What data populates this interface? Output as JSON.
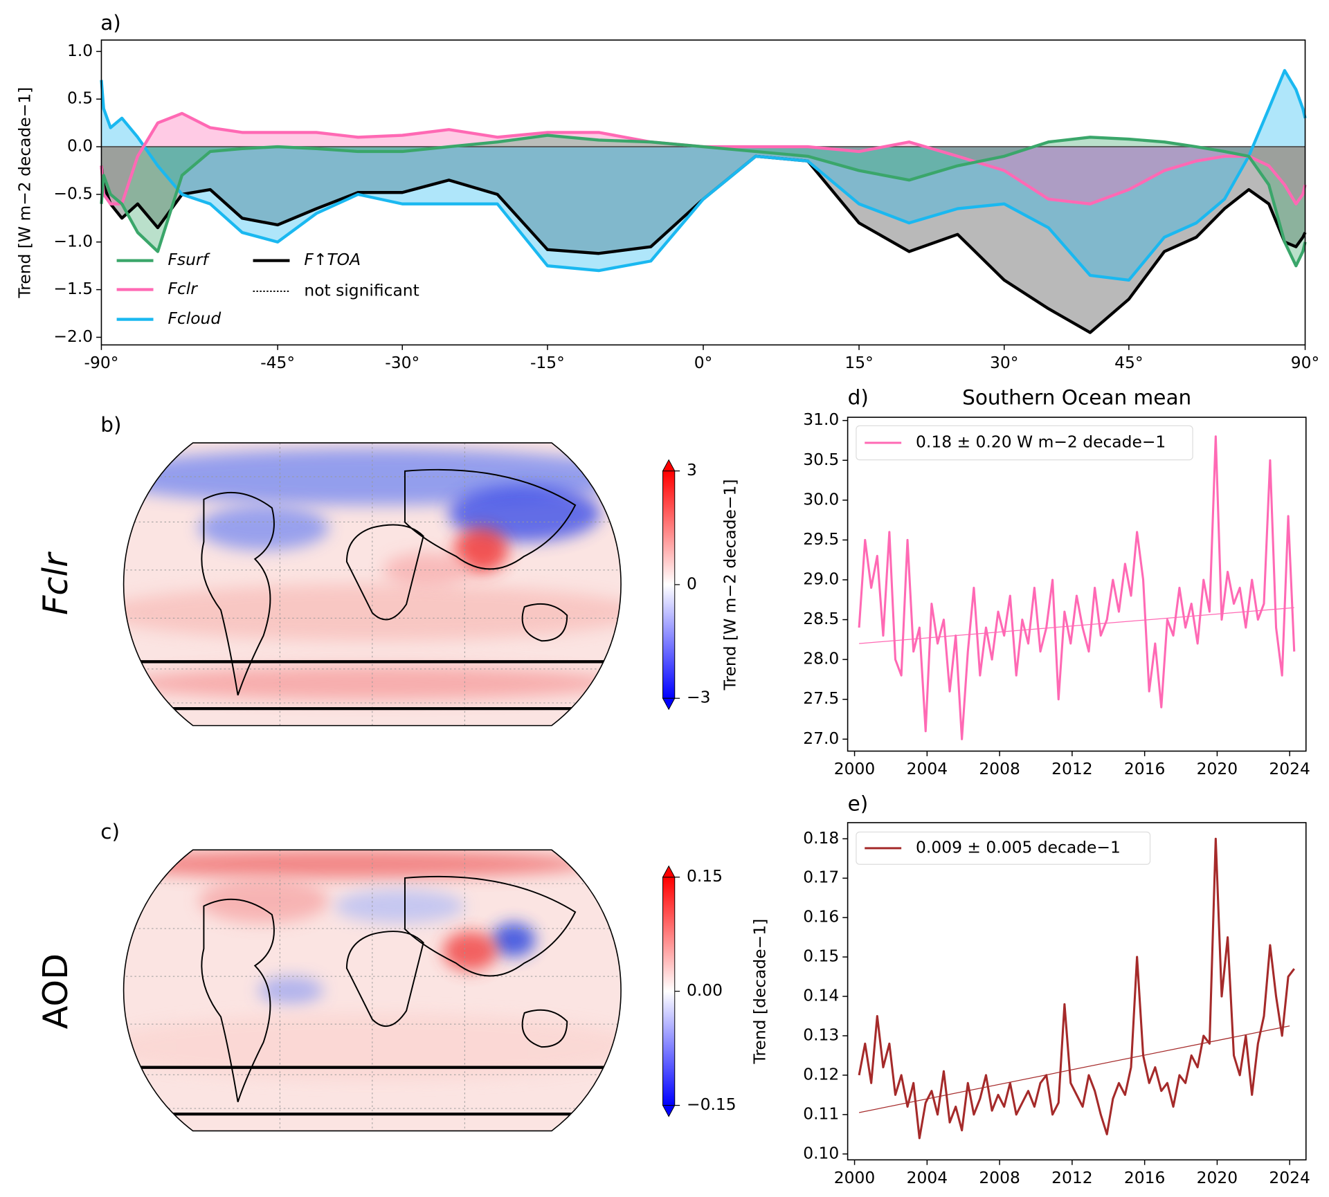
{
  "chart_data": [
    {
      "type": "line",
      "panel": "a)",
      "ylabel": "Trend [W m−2 decade−1]",
      "xscale": "sine",
      "xlim": [
        -90,
        90
      ],
      "xticks": [
        {
          "value": -90,
          "label": "-90°"
        },
        {
          "value": -45,
          "label": "-45°"
        },
        {
          "value": -30,
          "label": "-30°"
        },
        {
          "value": -15,
          "label": "-15°"
        },
        {
          "value": 0,
          "label": "0°"
        },
        {
          "value": 15,
          "label": "15°"
        },
        {
          "value": 30,
          "label": "30°"
        },
        {
          "value": 45,
          "label": "45°"
        },
        {
          "value": 90,
          "label": "90°"
        }
      ],
      "ylim": [
        -2.08,
        1.12
      ],
      "yticks": [
        {
          "value": 1,
          "label": "1.0"
        },
        0.5,
        {
          "value": 0,
          "label": "0.0"
        },
        {
          "value": -0.5,
          "label": "−0.5"
        },
        {
          "value": -1,
          "label": "−1.0"
        },
        {
          "value": -1.5,
          "label": "−1.5"
        },
        {
          "value": -2,
          "label": "−2.0"
        }
      ],
      "x": [
        -90,
        -85,
        -80,
        -75,
        -70,
        -65,
        -60,
        -55,
        -50,
        -45,
        -40,
        -35,
        -30,
        -25,
        -20,
        -15,
        -10,
        -5,
        0,
        5,
        10,
        15,
        20,
        25,
        30,
        35,
        40,
        45,
        50,
        55,
        60,
        65,
        70,
        75,
        80,
        85,
        90
      ],
      "series": [
        {
          "name": "F↑TOA",
          "color": "#000000",
          "fill": "#808080",
          "values": [
            -0.2,
            -0.4,
            -0.6,
            -0.75,
            -0.6,
            -0.85,
            -0.5,
            -0.45,
            -0.75,
            -0.82,
            -0.65,
            -0.48,
            -0.48,
            -0.35,
            -0.5,
            -1.08,
            -1.12,
            -1.05,
            -0.55,
            -0.1,
            -0.15,
            -0.8,
            -1.1,
            -0.92,
            -1.4,
            -1.7,
            -1.95,
            -1.6,
            -1.1,
            -0.95,
            -0.65,
            -0.45,
            -0.6,
            -1.0,
            -1.05,
            -0.95,
            -0.9
          ]
        },
        {
          "name": "Fcloud",
          "color": "#1ab8f0",
          "fill": "#1ab8f0",
          "values": [
            0.7,
            0.4,
            0.2,
            0.3,
            0.1,
            -0.2,
            -0.5,
            -0.6,
            -0.9,
            -1.0,
            -0.7,
            -0.5,
            -0.6,
            -0.6,
            -0.6,
            -1.25,
            -1.3,
            -1.2,
            -0.55,
            -0.1,
            -0.15,
            -0.6,
            -0.8,
            -0.65,
            -0.6,
            -0.85,
            -1.35,
            -1.4,
            -0.95,
            -0.8,
            -0.55,
            -0.1,
            0.4,
            0.8,
            0.6,
            0.4,
            0.3
          ]
        },
        {
          "name": "Fclr",
          "color": "#ff69b4",
          "fill": "#ff69b4",
          "values": [
            -0.2,
            -0.5,
            -0.6,
            -0.6,
            -0.1,
            0.25,
            0.35,
            0.2,
            0.15,
            0.15,
            0.15,
            0.1,
            0.12,
            0.18,
            0.1,
            0.15,
            0.15,
            0.05,
            0,
            0,
            0,
            -0.05,
            0.05,
            -0.1,
            -0.25,
            -0.55,
            -0.6,
            -0.45,
            -0.25,
            -0.15,
            -0.1,
            -0.1,
            -0.2,
            -0.4,
            -0.6,
            -0.5,
            -0.4
          ]
        },
        {
          "name": "Fsurf",
          "color": "#3aa66a",
          "fill": "#3aa66a",
          "values": [
            -0.6,
            -0.3,
            -0.5,
            -0.6,
            -0.9,
            -1.1,
            -0.3,
            -0.05,
            -0.02,
            0,
            -0.02,
            -0.05,
            -0.05,
            0,
            0.05,
            0.12,
            0.07,
            0.05,
            0,
            -0.05,
            -0.1,
            -0.25,
            -0.35,
            -0.2,
            -0.1,
            0.05,
            0.1,
            0.08,
            0.05,
            0,
            -0.05,
            -0.1,
            -0.4,
            -1.0,
            -1.25,
            -1.1,
            -1.0
          ]
        }
      ],
      "legend_note": "not significant"
    },
    {
      "type": "map",
      "panel": "b)",
      "title": "Fclr",
      "clim": [
        -3,
        3
      ],
      "cticks": [
        3,
        0,
        {
          "value": -3,
          "label": "−3"
        }
      ],
      "clabel": "Trend [W m−2 decade−1]"
    },
    {
      "type": "map",
      "panel": "c)",
      "title": "AOD",
      "clim": [
        -0.15,
        0.15
      ],
      "cticks": [
        0.15,
        {
          "value": 0,
          "label": "0.00"
        },
        {
          "value": -0.15,
          "label": "−0.15"
        }
      ]
    },
    {
      "type": "line",
      "panel": "d)",
      "title": "Southern Ocean mean",
      "xlim": [
        1999.62,
        2024.9
      ],
      "xticks": [
        2000,
        2004,
        2008,
        2012,
        2016,
        2020,
        2024
      ],
      "ylim": [
        26.85,
        31.04
      ],
      "yticks": [
        {
          "value": 27,
          "label": "27.0"
        },
        27.5,
        {
          "value": 28,
          "label": "28.0"
        },
        28.5,
        {
          "value": 29,
          "label": "29.0"
        },
        29.5,
        {
          "value": 30,
          "label": "30.0"
        },
        30.5,
        {
          "value": 31,
          "label": "31.0"
        }
      ],
      "series": [
        {
          "name": "0.18 ± 0.20 W m−2 decade−1",
          "color": "#ff69b4",
          "x": [
            2000.25,
            2000.58,
            2000.92,
            2001.25,
            2001.58,
            2001.92,
            2002.25,
            2002.58,
            2002.92,
            2003.25,
            2003.58,
            2003.92,
            2004.25,
            2004.58,
            2004.92,
            2005.25,
            2005.58,
            2005.92,
            2006.25,
            2006.58,
            2006.92,
            2007.25,
            2007.58,
            2007.92,
            2008.25,
            2008.58,
            2008.92,
            2009.25,
            2009.58,
            2009.92,
            2010.25,
            2010.58,
            2010.92,
            2011.25,
            2011.58,
            2011.92,
            2012.25,
            2012.58,
            2012.92,
            2013.25,
            2013.58,
            2013.92,
            2014.25,
            2014.58,
            2014.92,
            2015.25,
            2015.58,
            2015.92,
            2016.25,
            2016.58,
            2016.92,
            2017.25,
            2017.58,
            2017.92,
            2018.25,
            2018.58,
            2018.92,
            2019.25,
            2019.58,
            2019.92,
            2020.25,
            2020.58,
            2020.92,
            2021.25,
            2021.58,
            2021.92,
            2022.25,
            2022.58,
            2022.92,
            2023.25,
            2023.58,
            2023.92,
            2024.25
          ],
          "values": [
            28.4,
            29.5,
            28.9,
            29.3,
            28.3,
            29.6,
            28.0,
            27.8,
            29.5,
            28.1,
            28.4,
            27.1,
            28.7,
            28.2,
            28.5,
            27.6,
            28.3,
            27.0,
            28.1,
            28.9,
            27.8,
            28.4,
            28.0,
            28.6,
            28.3,
            28.8,
            27.8,
            28.5,
            28.2,
            28.9,
            28.1,
            28.4,
            29.0,
            27.5,
            28.6,
            28.2,
            28.8,
            28.4,
            28.1,
            28.9,
            28.3,
            28.5,
            29.0,
            28.6,
            29.2,
            28.8,
            29.6,
            29.0,
            27.6,
            28.2,
            27.4,
            28.5,
            28.3,
            28.9,
            28.4,
            28.7,
            28.2,
            29.0,
            28.6,
            30.8,
            28.5,
            29.1,
            28.7,
            28.9,
            28.4,
            29.0,
            28.5,
            28.7,
            30.5,
            28.4,
            27.8,
            29.8,
            28.1
          ]
        },
        {
          "color": "#ff69b4",
          "x": [
            2000.25,
            2024.25
          ],
          "values": [
            28.2,
            28.65
          ]
        }
      ]
    },
    {
      "type": "line",
      "panel": "e)",
      "ylabel": "Trend [decade−1]",
      "xlim": [
        1999.62,
        2024.9
      ],
      "xticks": [
        2000,
        2004,
        2008,
        2012,
        2016,
        2020,
        2024
      ],
      "ylim": [
        0.0985,
        0.1841
      ],
      "yticks": [
        {
          "value": 0.1,
          "label": "0.10"
        },
        0.11,
        0.12,
        0.13,
        0.14,
        0.15,
        0.16,
        0.17,
        0.18
      ],
      "series": [
        {
          "name": "0.009 ± 0.005 decade−1",
          "color": "#a52a2a",
          "x": [
            2000.25,
            2000.58,
            2000.92,
            2001.25,
            2001.58,
            2001.92,
            2002.25,
            2002.58,
            2002.92,
            2003.25,
            2003.58,
            2003.92,
            2004.25,
            2004.58,
            2004.92,
            2005.25,
            2005.58,
            2005.92,
            2006.25,
            2006.58,
            2006.92,
            2007.25,
            2007.58,
            2007.92,
            2008.25,
            2008.58,
            2008.92,
            2009.25,
            2009.58,
            2009.92,
            2010.25,
            2010.58,
            2010.92,
            2011.25,
            2011.58,
            2011.92,
            2012.25,
            2012.58,
            2012.92,
            2013.25,
            2013.58,
            2013.92,
            2014.25,
            2014.58,
            2014.92,
            2015.25,
            2015.58,
            2015.92,
            2016.25,
            2016.58,
            2016.92,
            2017.25,
            2017.58,
            2017.92,
            2018.25,
            2018.58,
            2018.92,
            2019.25,
            2019.58,
            2019.92,
            2020.25,
            2020.58,
            2020.92,
            2021.25,
            2021.58,
            2021.92,
            2022.25,
            2022.58,
            2022.92,
            2023.25,
            2023.58,
            2023.92,
            2024.25
          ],
          "values": [
            0.12,
            0.128,
            0.118,
            0.135,
            0.122,
            0.128,
            0.115,
            0.12,
            0.112,
            0.118,
            0.104,
            0.113,
            0.116,
            0.11,
            0.121,
            0.108,
            0.112,
            0.106,
            0.118,
            0.11,
            0.114,
            0.12,
            0.111,
            0.115,
            0.112,
            0.118,
            0.11,
            0.113,
            0.116,
            0.112,
            0.118,
            0.12,
            0.11,
            0.113,
            0.138,
            0.118,
            0.115,
            0.112,
            0.12,
            0.116,
            0.11,
            0.105,
            0.114,
            0.118,
            0.115,
            0.122,
            0.15,
            0.125,
            0.118,
            0.122,
            0.116,
            0.118,
            0.112,
            0.12,
            0.118,
            0.125,
            0.122,
            0.13,
            0.128,
            0.18,
            0.14,
            0.155,
            0.125,
            0.12,
            0.13,
            0.115,
            0.128,
            0.135,
            0.153,
            0.14,
            0.13,
            0.145,
            0.147
          ]
        },
        {
          "color": "#a52a2a",
          "x": [
            2000.25,
            2024.0
          ],
          "values": [
            0.1105,
            0.1325
          ]
        }
      ]
    }
  ]
}
